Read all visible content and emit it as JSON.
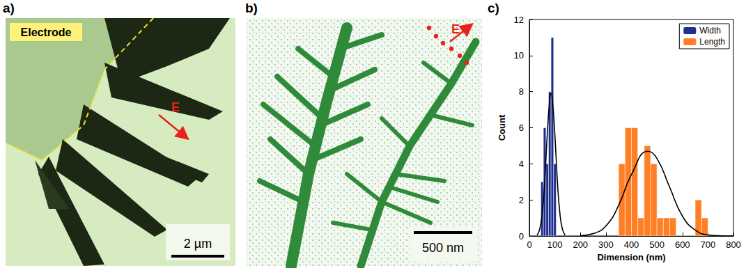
{
  "panels": [
    {
      "letter": "a)",
      "label": "Electrode",
      "field": "E",
      "scale_bar": "2 µm"
    },
    {
      "letter": "b)",
      "field": "E",
      "scale_bar": "500 nm"
    }
  ],
  "chart_data": {
    "letter": "c)",
    "type": "histogram",
    "x_label": "Dimension (nm)",
    "y_label": "Count",
    "xlim": [
      0,
      800
    ],
    "xticks": [
      0,
      100,
      200,
      300,
      400,
      500,
      600,
      700,
      800
    ],
    "ylim": [
      0,
      12
    ],
    "yticks": [
      0,
      2,
      4,
      6,
      8,
      10,
      12
    ],
    "grid": false,
    "legend": "upper right",
    "series": [
      {
        "name": "Width",
        "color": "#1f2f8f",
        "bins": [
          45,
          55,
          65,
          75,
          85,
          95,
          105
        ],
        "values": [
          3,
          6,
          4,
          8,
          11,
          4
        ],
        "fit": {
          "color": "#000000",
          "x": [
            30,
            40,
            50,
            60,
            70,
            80,
            85,
            90,
            100,
            110,
            120,
            130,
            140
          ],
          "values": [
            0.05,
            0.35,
            1.2,
            3.0,
            5.6,
            7.6,
            7.9,
            7.6,
            5.6,
            3.0,
            1.2,
            0.35,
            0.05
          ]
        }
      },
      {
        "name": "Length",
        "color": "#ff7f27",
        "bins": [
          350,
          375,
          400,
          425,
          450,
          475,
          500,
          525,
          550,
          575,
          600,
          625,
          650,
          675,
          700
        ],
        "values": [
          4,
          6,
          6,
          1,
          5,
          4,
          1,
          1,
          1,
          0,
          0,
          0,
          2,
          1
        ],
        "fit": {
          "color": "#000000",
          "x": [
            200,
            250,
            300,
            350,
            400,
            465,
            500,
            550,
            600,
            650,
            700,
            750,
            800
          ],
          "values": [
            0.02,
            0.13,
            0.56,
            1.7,
            3.4,
            4.7,
            4.3,
            2.7,
            1.1,
            0.33,
            0.06,
            0.01,
            0
          ]
        }
      }
    ]
  }
}
